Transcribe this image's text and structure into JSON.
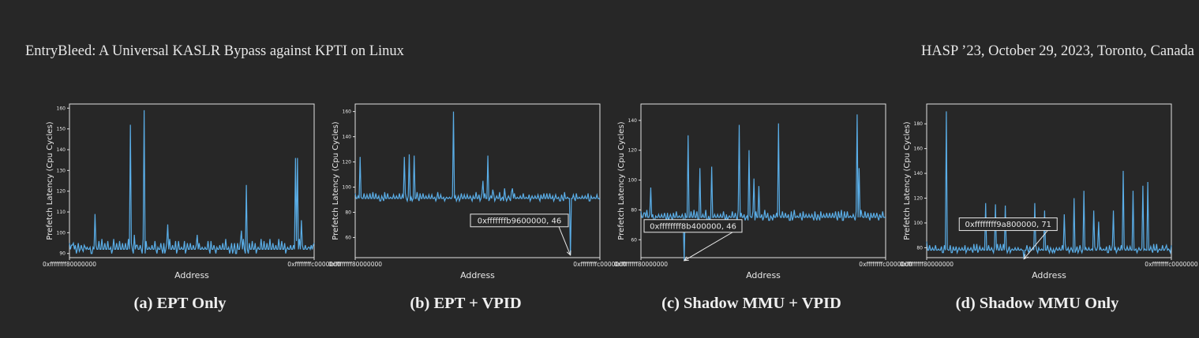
{
  "header": {
    "left": "EntryBleed: A Universal KASLR Bypass against KPTI on Linux",
    "right": "HASP ’23, October 29, 2023, Toronto, Canada"
  },
  "chart_data": [
    {
      "type": "line",
      "caption": "(a) EPT Only",
      "xlabel": "Address",
      "ylabel": "Prefetch Latency (Cpu Cycles)",
      "x_ticks": [
        "0xffffffff80000000",
        "0xffffffffc0000000"
      ],
      "yticks": [
        90,
        100,
        110,
        120,
        130,
        140,
        150,
        160
      ],
      "ylim": [
        88,
        162
      ],
      "annotation": null,
      "line_color": "#5aaee8",
      "baseline": 92,
      "baseline_sign": 1,
      "n_points": 250,
      "values_start": [
        [
          0,
          95
        ],
        [
          2,
          94
        ],
        [
          4,
          95
        ],
        [
          6,
          94
        ],
        [
          8,
          92
        ],
        [
          10,
          91
        ],
        [
          12,
          90
        ],
        [
          14,
          91
        ],
        [
          16,
          93
        ],
        [
          18,
          93
        ],
        [
          20,
          92
        ]
      ],
      "values_end": [
        [
          242,
          92
        ],
        [
          244,
          93
        ],
        [
          246,
          94
        ],
        [
          248,
          94
        ],
        [
          249,
          95
        ]
      ],
      "spikes": [
        [
          12,
          94
        ],
        [
          26,
          109
        ],
        [
          62,
          152
        ],
        [
          66,
          99
        ],
        [
          68,
          94
        ],
        [
          76,
          159
        ],
        [
          100,
          104
        ],
        [
          130,
          99
        ],
        [
          150,
          93
        ],
        [
          175,
          101
        ],
        [
          180,
          123
        ],
        [
          230,
          136
        ],
        [
          232,
          136
        ],
        [
          236,
          106
        ]
      ]
    },
    {
      "type": "line",
      "caption": "(b) EPT + VPID",
      "xlabel": "Address",
      "ylabel": "Prefetch Latency (Cpu Cycles)",
      "x_ticks": [
        "0xffffffff80000000",
        "0xffffffffc0000000"
      ],
      "yticks": [
        60,
        80,
        100,
        120,
        140,
        160
      ],
      "ylim": [
        44,
        166
      ],
      "annotation": {
        "text": "0xfffffffb9600000, 46",
        "x": 219,
        "y": 46
      },
      "line_color": "#5aaee8",
      "baseline": 91,
      "baseline_sign": 1,
      "n_points": 250,
      "values_start": [
        [
          0,
          95
        ],
        [
          3,
          93
        ],
        [
          6,
          92
        ]
      ],
      "values_end": [
        [
          244,
          91
        ],
        [
          249,
          90
        ]
      ],
      "spikes": [
        [
          5,
          124
        ],
        [
          50,
          124
        ],
        [
          55,
          126
        ],
        [
          60,
          125
        ],
        [
          100,
          160
        ],
        [
          130,
          105
        ],
        [
          135,
          125
        ],
        [
          140,
          98
        ],
        [
          152,
          99
        ],
        [
          160,
          99
        ],
        [
          219,
          46
        ]
      ]
    },
    {
      "type": "line",
      "caption": "(c) Shadow MMU + VPID",
      "xlabel": "Address",
      "ylabel": "Prefetch Latency (Cpu Cycles)",
      "x_ticks": [
        "0xffffffff80000000",
        "0xffffffffc0000000"
      ],
      "yticks": [
        60,
        80,
        100,
        120,
        140
      ],
      "ylim": [
        48,
        151
      ],
      "annotation": {
        "text": "0xffffffff8b400000, 46",
        "x": 44,
        "y": 46
      },
      "line_color": "#5aaee8",
      "baseline": 75,
      "baseline_sign": 1,
      "n_points": 250,
      "values_start": [
        [
          0,
          79
        ],
        [
          4,
          78
        ],
        [
          8,
          75
        ]
      ],
      "values_end": [
        [
          244,
          75
        ],
        [
          249,
          75
        ]
      ],
      "spikes": [
        [
          10,
          95
        ],
        [
          44,
          46
        ],
        [
          48,
          130
        ],
        [
          60,
          108
        ],
        [
          72,
          109
        ],
        [
          100,
          137
        ],
        [
          110,
          120
        ],
        [
          115,
          101
        ],
        [
          140,
          138
        ],
        [
          120,
          96
        ],
        [
          220,
          144
        ],
        [
          222,
          108
        ],
        [
          224,
          80
        ]
      ]
    },
    {
      "type": "line",
      "caption": "(d) Shadow MMU Only",
      "xlabel": "Address",
      "ylabel": "Prefetch Latency (Cpu Cycles)",
      "x_ticks": [
        "0xffffffff80000000",
        "0xffffffffc0000000"
      ],
      "yticks": [
        80,
        100,
        120,
        140,
        160,
        180
      ],
      "ylim": [
        72,
        196
      ],
      "annotation": {
        "text": "0xffffffff9a800000, 71",
        "x": 99,
        "y": 71
      },
      "line_color": "#5aaee8",
      "baseline": 78,
      "baseline_sign": 1,
      "n_points": 250,
      "values_start": [
        [
          0,
          85
        ],
        [
          3,
          82
        ],
        [
          6,
          80
        ]
      ],
      "values_end": [
        [
          244,
          82
        ],
        [
          249,
          82
        ]
      ],
      "spikes": [
        [
          20,
          190
        ],
        [
          60,
          116
        ],
        [
          70,
          115
        ],
        [
          80,
          114
        ],
        [
          99,
          71
        ],
        [
          110,
          116
        ],
        [
          120,
          110
        ],
        [
          140,
          107
        ],
        [
          150,
          120
        ],
        [
          160,
          126
        ],
        [
          170,
          110
        ],
        [
          175,
          101
        ],
        [
          190,
          110
        ],
        [
          200,
          142
        ],
        [
          210,
          126
        ],
        [
          220,
          130
        ],
        [
          225,
          133
        ]
      ]
    }
  ]
}
